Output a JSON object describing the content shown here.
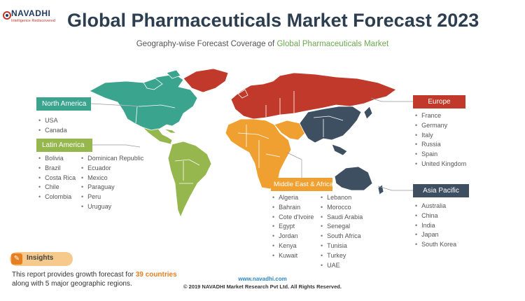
{
  "brand": {
    "name": "NAVADHI",
    "tagline": "Intelligence Rediscovered"
  },
  "header": {
    "title": "Global Pharmaceuticals Market Forecast 2023",
    "subtitle_prefix": "Geography-wise Forecast Coverage of ",
    "subtitle_highlight": "Global Pharmaceuticals Market"
  },
  "regions": {
    "north_america": {
      "label": "North America",
      "color": "#3aa48f",
      "countries": [
        "USA",
        "Canada"
      ]
    },
    "latin_america": {
      "label": "Latin America",
      "color": "#96b64e",
      "countries_col1": [
        "Bolivia",
        "Brazil",
        "Costa Rica",
        "Chile",
        "Colombia"
      ],
      "countries_col2": [
        "Dominican Republic",
        "Ecuador",
        "Mexico",
        "Paraguay",
        "Peru",
        "Uruguay"
      ]
    },
    "europe": {
      "label": "Europe",
      "color": "#c0392b",
      "countries": [
        "France",
        "Germany",
        "Italy",
        "Russia",
        "Spain",
        "United Kingdom"
      ]
    },
    "asia_pacific": {
      "label": "Asia Pacific",
      "color": "#3f4f62",
      "countries": [
        "Australia",
        "China",
        "India",
        "Japan",
        "South Korea"
      ]
    },
    "middle_east_africa": {
      "label": "Middle East & Africa",
      "color": "#f0a030",
      "countries_col1": [
        "Algeria",
        "Bahrain",
        "Cote d'Ivoire",
        "Egypt",
        "Jordan",
        "Kenya",
        "Kuwait"
      ],
      "countries_col2": [
        "Lebanon",
        "Morocco",
        "Saudi Arabia",
        "Senegal",
        "South Africa",
        "Tunisia",
        "Turkey",
        "UAE"
      ]
    }
  },
  "insights": {
    "title": "Insights",
    "text_prefix": "This report provides growth forecast for ",
    "count": "39",
    "text_bold": "countries",
    "text_suffix": " along with 5 major geographic regions."
  },
  "footer": {
    "url": "www.navadhi.com",
    "copyright": "© 2019 NAVADHI Market Research Pvt Ltd. All Rights Reserved."
  }
}
